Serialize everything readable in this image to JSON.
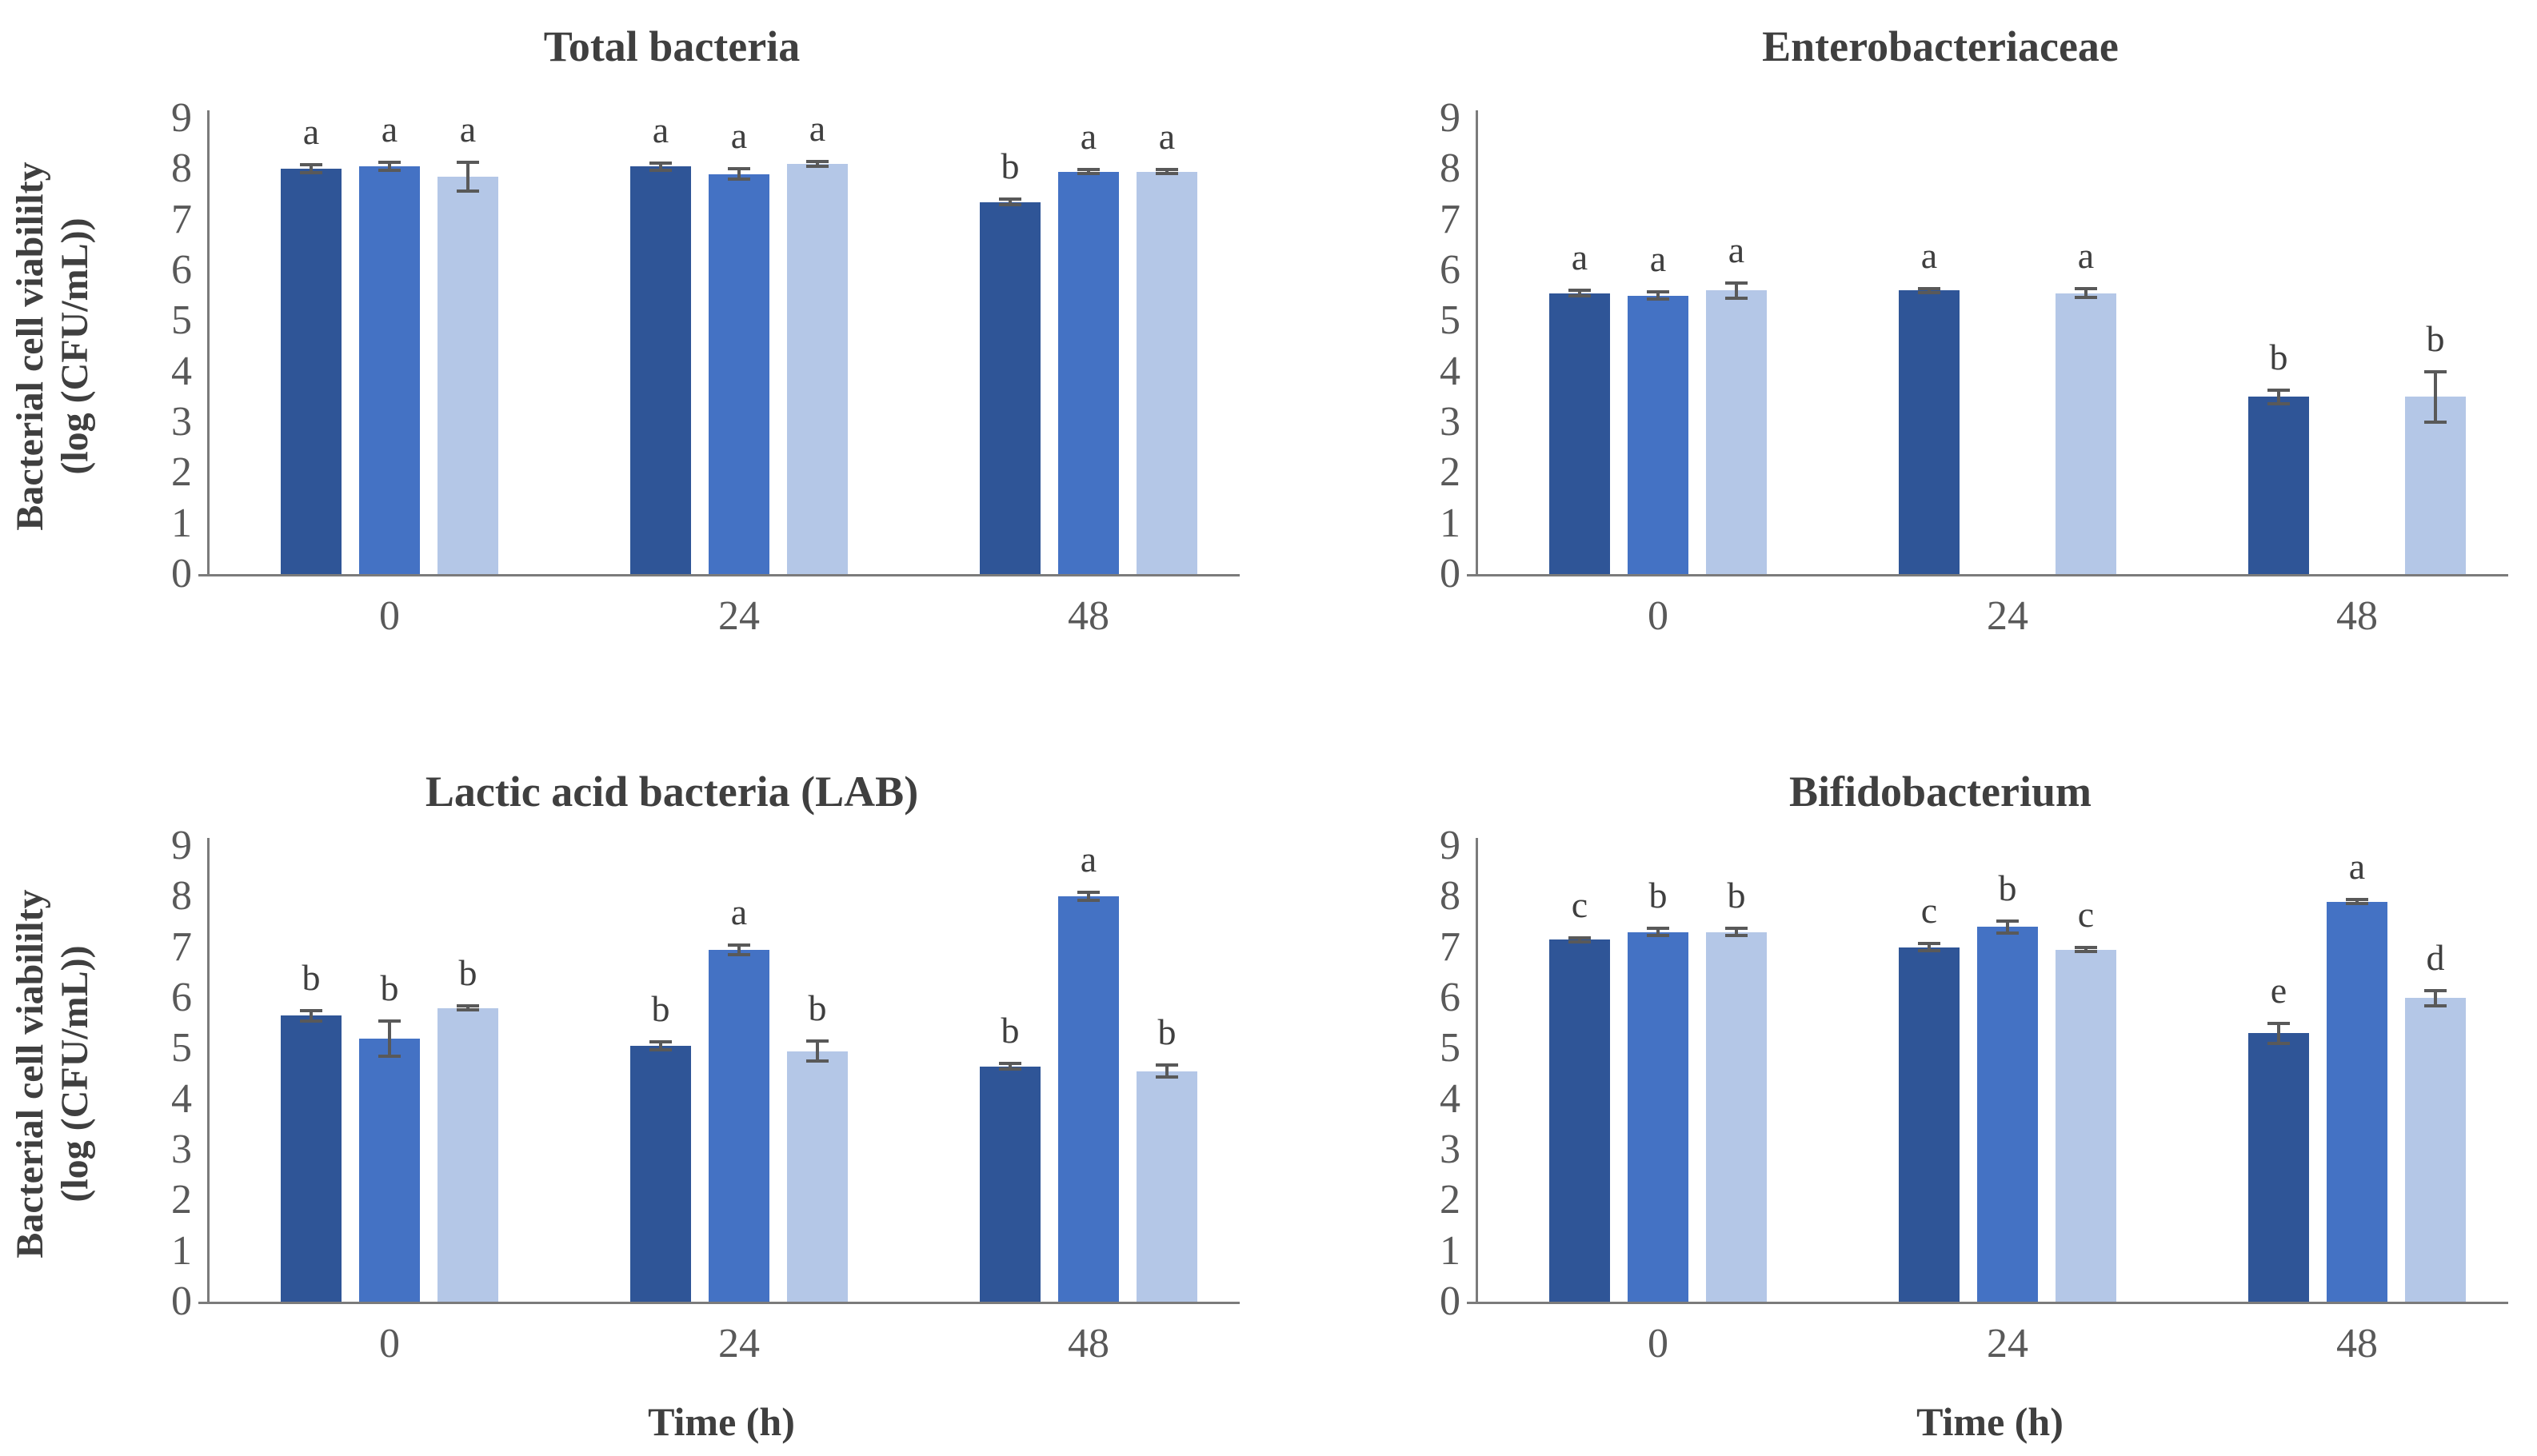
{
  "shared": {
    "ylabel_line1": "Bacterial cell viabililty",
    "ylabel_line2": "(log (CFU/mL))",
    "xlabel": "Time (h)",
    "yticks": [
      "0",
      "1",
      "2",
      "3",
      "4",
      "5",
      "6",
      "7",
      "8",
      "9"
    ]
  },
  "colors": {
    "series_dark": "#2f5597",
    "series_medium": "#4472c4",
    "series_light": "#b4c7e7",
    "error_bar": "#595959",
    "axis_line": "#7b7b7b",
    "tick_text": "#595959",
    "title_text": "#3f3f3f"
  },
  "chart_data": [
    {
      "id": "total-bacteria",
      "type": "bar",
      "title": "Total bacteria",
      "categories": [
        "0",
        "24",
        "48"
      ],
      "ylim": [
        0,
        9
      ],
      "grid": false,
      "legend": false,
      "series": [
        {
          "name": "dark-blue",
          "color": "#2f5597",
          "values": [
            8.0,
            8.05,
            7.35
          ],
          "errors": [
            0.08,
            0.07,
            0.06
          ],
          "letters": [
            "a",
            "a",
            "b"
          ]
        },
        {
          "name": "medium-blue",
          "color": "#4472c4",
          "values": [
            8.05,
            7.9,
            7.95
          ],
          "errors": [
            0.08,
            0.1,
            0.04
          ],
          "letters": [
            "a",
            "a",
            "a"
          ]
        },
        {
          "name": "light-blue",
          "color": "#b4c7e7",
          "values": [
            7.85,
            8.1,
            7.95
          ],
          "errors": [
            0.28,
            0.04,
            0.04
          ],
          "letters": [
            "a",
            "a",
            "a"
          ]
        }
      ]
    },
    {
      "id": "enterobacteriaceae",
      "type": "bar",
      "title": "Enterobacteriaceae",
      "categories": [
        "0",
        "24",
        "48"
      ],
      "ylim": [
        0,
        9
      ],
      "grid": false,
      "legend": false,
      "series": [
        {
          "name": "dark-blue",
          "color": "#2f5597",
          "values": [
            5.55,
            5.6,
            3.5
          ],
          "errors": [
            0.05,
            0.04,
            0.13
          ],
          "letters": [
            "a",
            "a",
            "b"
          ]
        },
        {
          "name": "medium-blue",
          "color": "#4472c4",
          "values": [
            5.5,
            null,
            null
          ],
          "errors": [
            0.07,
            null,
            null
          ],
          "letters": [
            "a",
            null,
            null
          ]
        },
        {
          "name": "light-blue",
          "color": "#b4c7e7",
          "values": [
            5.6,
            5.55,
            3.5
          ],
          "errors": [
            0.15,
            0.08,
            0.5
          ],
          "letters": [
            "a",
            "a",
            "b"
          ]
        }
      ]
    },
    {
      "id": "lactic-acid-bacteria",
      "type": "bar",
      "title": "Lactic acid bacteria (LAB)",
      "categories": [
        "0",
        "24",
        "48"
      ],
      "ylim": [
        0,
        9
      ],
      "grid": false,
      "legend": false,
      "series": [
        {
          "name": "dark-blue",
          "color": "#2f5597",
          "values": [
            5.65,
            5.05,
            4.65
          ],
          "errors": [
            0.1,
            0.08,
            0.06
          ],
          "letters": [
            "b",
            "b",
            "b"
          ]
        },
        {
          "name": "medium-blue",
          "color": "#4472c4",
          "values": [
            5.2,
            6.95,
            8.0
          ],
          "errors": [
            0.35,
            0.1,
            0.08
          ],
          "letters": [
            "b",
            "a",
            "a"
          ]
        },
        {
          "name": "light-blue",
          "color": "#b4c7e7",
          "values": [
            5.8,
            4.95,
            4.55
          ],
          "errors": [
            0.04,
            0.2,
            0.12
          ],
          "letters": [
            "b",
            "b",
            "b"
          ]
        }
      ]
    },
    {
      "id": "bifidobacterium",
      "type": "bar",
      "title": "Bifidobacterium",
      "categories": [
        "0",
        "24",
        "48"
      ],
      "ylim": [
        0,
        9
      ],
      "grid": false,
      "legend": false,
      "series": [
        {
          "name": "dark-blue",
          "color": "#2f5597",
          "values": [
            7.15,
            7.0,
            5.3
          ],
          "errors": [
            0.04,
            0.07,
            0.2
          ],
          "letters": [
            "c",
            "c",
            "e"
          ]
        },
        {
          "name": "medium-blue",
          "color": "#4472c4",
          "values": [
            7.3,
            7.4,
            7.9
          ],
          "errors": [
            0.07,
            0.12,
            0.04
          ],
          "letters": [
            "b",
            "b",
            "a"
          ]
        },
        {
          "name": "light-blue",
          "color": "#b4c7e7",
          "values": [
            7.3,
            6.95,
            6.0
          ],
          "errors": [
            0.07,
            0.04,
            0.15
          ],
          "letters": [
            "b",
            "c",
            "d"
          ]
        }
      ]
    }
  ]
}
